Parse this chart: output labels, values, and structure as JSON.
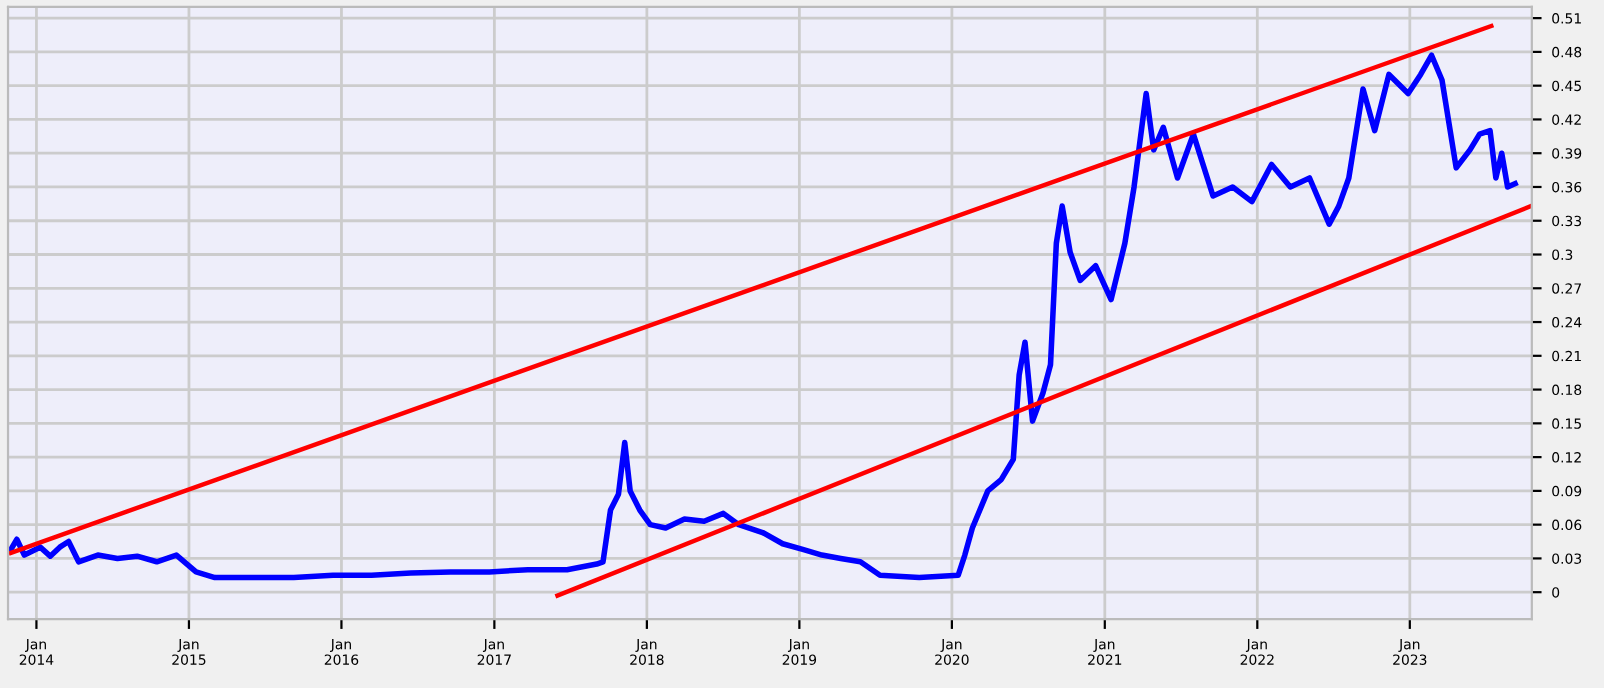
{
  "chart_data": {
    "type": "line",
    "xlim": [
      "2013-10-25",
      "2023-10-20"
    ],
    "ylim": [
      -0.024,
      0.52
    ],
    "yticks": [
      {
        "value": 0,
        "label": "0"
      },
      {
        "value": 0.03,
        "label": "0.03"
      },
      {
        "value": 0.06,
        "label": "0.06"
      },
      {
        "value": 0.09,
        "label": "0.09"
      },
      {
        "value": 0.12,
        "label": "0.12"
      },
      {
        "value": 0.15,
        "label": "0.15"
      },
      {
        "value": 0.18,
        "label": "0.18"
      },
      {
        "value": 0.21,
        "label": "0.21"
      },
      {
        "value": 0.24,
        "label": "0.24"
      },
      {
        "value": 0.27,
        "label": "0.27"
      },
      {
        "value": 0.3,
        "label": "0.3"
      },
      {
        "value": 0.33,
        "label": "0.33"
      },
      {
        "value": 0.36,
        "label": "0.36"
      },
      {
        "value": 0.39,
        "label": "0.39"
      },
      {
        "value": 0.42,
        "label": "0.42"
      },
      {
        "value": 0.45,
        "label": "0.45"
      },
      {
        "value": 0.48,
        "label": "0.48"
      },
      {
        "value": 0.51,
        "label": "0.51"
      }
    ],
    "xticks": [
      {
        "value": "2014-01-01",
        "label": "Jan\n2014"
      },
      {
        "value": "2015-01-01",
        "label": "Jan\n2015"
      },
      {
        "value": "2016-01-01",
        "label": "Jan\n2016"
      },
      {
        "value": "2017-01-01",
        "label": "Jan\n2017"
      },
      {
        "value": "2018-01-01",
        "label": "Jan\n2018"
      },
      {
        "value": "2019-01-01",
        "label": "Jan\n2019"
      },
      {
        "value": "2020-01-01",
        "label": "Jan\n2020"
      },
      {
        "value": "2021-01-01",
        "label": "Jan\n2021"
      },
      {
        "value": "2022-01-01",
        "label": "Jan\n2022"
      },
      {
        "value": "2023-01-01",
        "label": "Jan\n2023"
      }
    ],
    "grid": true,
    "legend": false,
    "marker": "none",
    "line_style": "solid",
    "series": [
      {
        "color": "#0000ff",
        "x": [
          "2013-11-01",
          "2013-11-15",
          "2013-12-03",
          "2014-01-10",
          "2014-02-03",
          "2014-02-26",
          "2014-03-19",
          "2014-04-12",
          "2014-05-28",
          "2014-07-14",
          "2014-08-30",
          "2014-10-16",
          "2014-12-02",
          "2015-01-18",
          "2015-03-04",
          "2015-06-06",
          "2015-09-09",
          "2015-12-12",
          "2016-03-13",
          "2016-06-15",
          "2016-09-18",
          "2016-12-20",
          "2017-03-22",
          "2017-06-24",
          "2017-09-03",
          "2017-09-18",
          "2017-10-06",
          "2017-10-25",
          "2017-11-09",
          "2017-11-22",
          "2017-12-15",
          "2018-01-09",
          "2018-02-15",
          "2018-04-01",
          "2018-05-18",
          "2018-07-03",
          "2018-08-09",
          "2018-10-05",
          "2018-11-22",
          "2019-01-09",
          "2019-02-24",
          "2019-04-10",
          "2019-05-27",
          "2019-07-13",
          "2019-10-15",
          "2020-01-16",
          "2020-02-01",
          "2020-02-19",
          "2020-03-27",
          "2020-04-28",
          "2020-05-27",
          "2020-06-10",
          "2020-06-24",
          "2020-07-12",
          "2020-08-06",
          "2020-08-24",
          "2020-09-07",
          "2020-09-21",
          "2020-10-10",
          "2020-11-03",
          "2020-12-10",
          "2021-01-16",
          "2021-02-18",
          "2021-03-12",
          "2021-04-10",
          "2021-04-28",
          "2021-05-21",
          "2021-06-24",
          "2021-08-01",
          "2021-09-17",
          "2021-11-03",
          "2021-12-19",
          "2022-02-04",
          "2022-03-21",
          "2022-05-06",
          "2022-06-22",
          "2022-07-15",
          "2022-08-08",
          "2022-09-11",
          "2022-10-09",
          "2022-11-12",
          "2022-12-28",
          "2023-01-27",
          "2023-02-22",
          "2023-03-19",
          "2023-04-22",
          "2023-05-25",
          "2023-06-17",
          "2023-07-12",
          "2023-07-26",
          "2023-08-09",
          "2023-08-23",
          "2023-09-10"
        ],
        "values": [
          0.038,
          0.047,
          0.033,
          0.04,
          0.032,
          0.04,
          0.045,
          0.027,
          0.033,
          0.03,
          0.032,
          0.027,
          0.033,
          0.018,
          0.013,
          0.013,
          0.013,
          0.015,
          0.015,
          0.017,
          0.018,
          0.018,
          0.02,
          0.02,
          0.025,
          0.027,
          0.073,
          0.087,
          0.133,
          0.09,
          0.073,
          0.06,
          0.057,
          0.065,
          0.063,
          0.07,
          0.06,
          0.053,
          0.043,
          0.038,
          0.033,
          0.03,
          0.027,
          0.015,
          0.013,
          0.015,
          0.033,
          0.057,
          0.09,
          0.1,
          0.118,
          0.193,
          0.222,
          0.152,
          0.177,
          0.202,
          0.31,
          0.343,
          0.302,
          0.277,
          0.29,
          0.26,
          0.31,
          0.36,
          0.443,
          0.393,
          0.413,
          0.368,
          0.407,
          0.352,
          0.36,
          0.347,
          0.38,
          0.36,
          0.368,
          0.327,
          0.343,
          0.368,
          0.447,
          0.41,
          0.46,
          0.443,
          0.46,
          0.477,
          0.455,
          0.377,
          0.393,
          0.407,
          0.41,
          0.368,
          0.39,
          0.36,
          0.363
        ]
      },
      {
        "color": "#ff0000",
        "x": [
          "2013-11-01",
          "2023-07-15"
        ],
        "values": [
          0.035,
          0.503
        ]
      },
      {
        "color": "#ff0000",
        "x": [
          "2017-06-01",
          "2023-10-18"
        ],
        "values": [
          -0.003,
          0.343
        ]
      }
    ]
  }
}
